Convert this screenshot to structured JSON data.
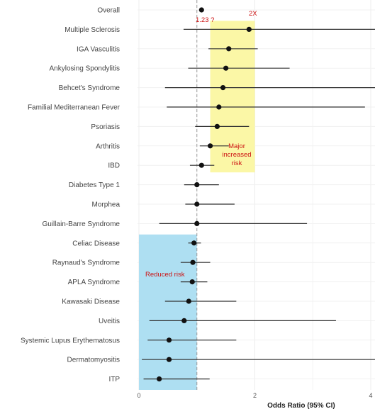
{
  "chart_data": {
    "type": "scatter",
    "subtype": "forest-plot",
    "xlabel": "Odds Ratio (95% CI)",
    "xlim": [
      0,
      4
    ],
    "x_ticks": [
      "0",
      "2",
      "4"
    ],
    "reference_line": 1,
    "grid": true,
    "colors": {
      "point": "#111111",
      "ci_line": "#333333",
      "increased_region": "#fbf7a6",
      "reduced_region": "#aedff2",
      "annotation": "#cc1111",
      "reference_line": "#999999"
    },
    "rows": [
      {
        "label": "Overall",
        "or": 1.08,
        "lo": 1.05,
        "hi": 1.12
      },
      {
        "label": "Multiple Sclerosis",
        "or": 1.9,
        "lo": 0.77,
        "hi": 4.2
      },
      {
        "label": "IGA Vasculitis",
        "or": 1.55,
        "lo": 1.2,
        "hi": 2.05
      },
      {
        "label": "Ankylosing Spondylitis",
        "or": 1.5,
        "lo": 0.85,
        "hi": 2.6
      },
      {
        "label": "Behcet's Syndrome",
        "or": 1.45,
        "lo": 0.45,
        "hi": 4.1
      },
      {
        "label": "Familial Mediterranean Fever",
        "or": 1.38,
        "lo": 0.48,
        "hi": 3.9
      },
      {
        "label": "Psoriasis",
        "or": 1.35,
        "lo": 0.97,
        "hi": 1.9
      },
      {
        "label": "Arthritis",
        "or": 1.23,
        "lo": 1.05,
        "hi": 1.55
      },
      {
        "label": "IBD",
        "or": 1.08,
        "lo": 0.88,
        "hi": 1.3
      },
      {
        "label": "Diabetes Type 1",
        "or": 1.0,
        "lo": 0.78,
        "hi": 1.38
      },
      {
        "label": "Morphea",
        "or": 1.0,
        "lo": 0.8,
        "hi": 1.65
      },
      {
        "label": "Guillain-Barre Syndrome",
        "or": 1.0,
        "lo": 0.35,
        "hi": 2.9
      },
      {
        "label": "Celiac Disease",
        "or": 0.95,
        "lo": 0.85,
        "hi": 1.07
      },
      {
        "label": "Raynaud's Syndrome",
        "or": 0.93,
        "lo": 0.72,
        "hi": 1.23
      },
      {
        "label": "APLA Syndrome",
        "or": 0.92,
        "lo": 0.72,
        "hi": 1.18
      },
      {
        "label": "Kawasaki Disease",
        "or": 0.86,
        "lo": 0.45,
        "hi": 1.68
      },
      {
        "label": "Uveitis",
        "or": 0.78,
        "lo": 0.18,
        "hi": 3.4
      },
      {
        "label": "Systemic Lupus Erythematosus",
        "or": 0.52,
        "lo": 0.15,
        "hi": 1.68
      },
      {
        "label": "Dermatomyositis",
        "or": 0.52,
        "lo": 0.05,
        "hi": 4.2
      },
      {
        "label": "ITP",
        "or": 0.35,
        "lo": 0.08,
        "hi": 1.22
      }
    ],
    "regions": [
      {
        "name": "increased",
        "x_from": 1.23,
        "x_to": 2.0,
        "row_from": "Multiple Sclerosis",
        "row_to": "IBD"
      },
      {
        "name": "reduced",
        "x_from": 0,
        "x_to": 1.0,
        "row_from": "Celiac Disease",
        "row_to": "ITP"
      }
    ],
    "annotations": {
      "or_label": "1.23 ?",
      "two_x": "2X",
      "major": [
        "Major",
        "increased",
        "risk"
      ],
      "reduced": "Reduced risk"
    }
  }
}
